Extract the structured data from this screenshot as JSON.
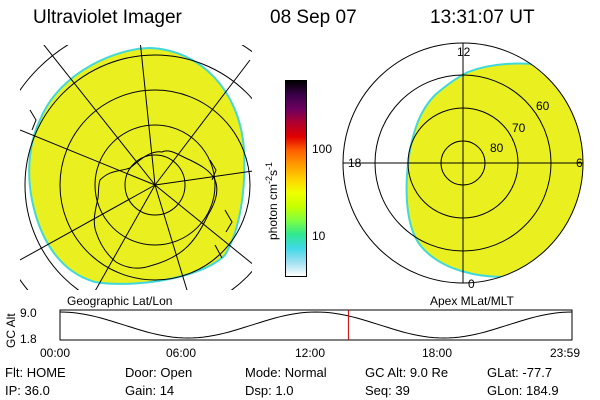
{
  "header": {
    "title": "Ultraviolet Imager",
    "date": "08 Sep 07",
    "time": "13:31:07 UT"
  },
  "left_panel": {
    "label": "Geographic Lat/Lon"
  },
  "right_panel": {
    "label": "Apex MLat/MLT",
    "mlt_labels": {
      "top": "12",
      "left": "18",
      "right": "6",
      "bottom": "0"
    },
    "mlat_labels": [
      "60",
      "70",
      "80"
    ]
  },
  "colorbar": {
    "unit_label": "photon cm",
    "unit_exp1": "-2",
    "unit_mid": "s",
    "unit_exp2": "-1",
    "tick_100": "100",
    "tick_10": "10",
    "colors": [
      "#000000",
      "#3a0048",
      "#6c0060",
      "#b00030",
      "#e00000",
      "#ff6000",
      "#ff9a00",
      "#ffd000",
      "#f0ff00",
      "#c8ff00",
      "#80ff40",
      "#30e890",
      "#40d8e8",
      "#a0e0f0",
      "#ffffff"
    ]
  },
  "timeline": {
    "axis_title": "GC Alt",
    "y_max": "9.0",
    "y_min": "1.8",
    "time_labels": [
      "00:00",
      "06:00",
      "12:00",
      "18:00",
      "23:59"
    ],
    "current_time_fraction": 0.5633
  },
  "footer": {
    "row1": [
      {
        "key": "Flt:",
        "value": "HOME"
      },
      {
        "key": "Door:",
        "value": "Open"
      },
      {
        "key": "Mode:",
        "value": "Normal"
      },
      {
        "key": "GC Alt:",
        "value": "9.0 Re"
      },
      {
        "key": "GLat:",
        "value": "-77.7"
      }
    ],
    "row2": [
      {
        "key": "IP:",
        "value": "36.0"
      },
      {
        "key": "Gain:",
        "value": "14"
      },
      {
        "key": "Dsp:",
        "value": "1.0"
      },
      {
        "key": "Seq:",
        "value": "39"
      },
      {
        "key": "GLon:",
        "value": "184.9"
      }
    ]
  },
  "colors": {
    "aurora_fill": "#eaf020",
    "aurora_edge": "#40d8d8",
    "time_marker": "#cc0000"
  }
}
